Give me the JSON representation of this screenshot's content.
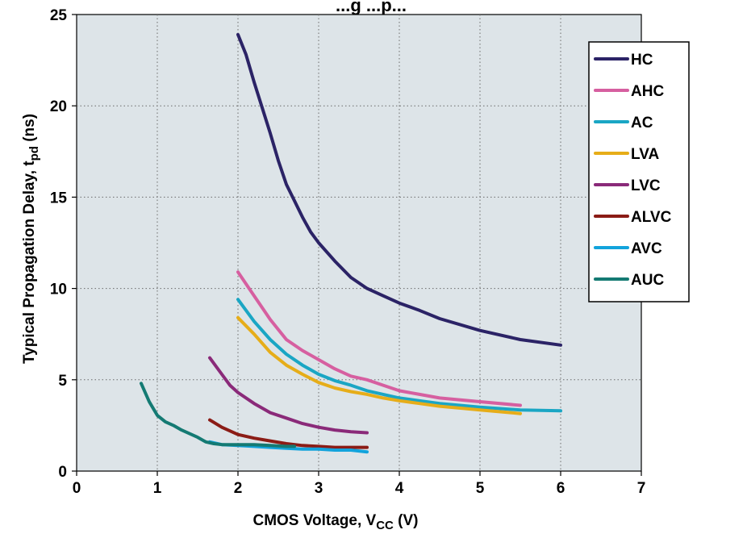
{
  "chart_data": {
    "type": "line",
    "title": "...g ...p...",
    "xlabel": {
      "main": "CMOS Voltage, V",
      "sub": "CC",
      "suffix": " (V)"
    },
    "ylabel": {
      "main": "Typical Propagation Delay, t",
      "sub": "pd",
      "suffix": " (ns)"
    },
    "xlim": [
      0,
      7
    ],
    "ylim": [
      0,
      25
    ],
    "xticks": [
      0,
      1,
      2,
      3,
      4,
      5,
      6,
      7
    ],
    "yticks": [
      0,
      5,
      10,
      15,
      20,
      25
    ],
    "grid": true,
    "legend_position": "top-right",
    "plot_background": "#dde4e8",
    "series": [
      {
        "name": "HC",
        "color": "#2b2366",
        "x": [
          2.0,
          2.1,
          2.2,
          2.3,
          2.4,
          2.5,
          2.6,
          2.7,
          2.8,
          2.9,
          3.0,
          3.2,
          3.4,
          3.6,
          3.8,
          4.0,
          4.25,
          4.5,
          5.0,
          5.5,
          6.0
        ],
        "y": [
          23.9,
          22.8,
          21.3,
          19.9,
          18.5,
          17.0,
          15.7,
          14.8,
          13.9,
          13.1,
          12.5,
          11.5,
          10.6,
          10.0,
          9.6,
          9.2,
          8.8,
          8.35,
          7.7,
          7.2,
          6.9
        ]
      },
      {
        "name": "AHC",
        "color": "#d65fa0",
        "x": [
          2.0,
          2.2,
          2.4,
          2.6,
          2.8,
          3.0,
          3.2,
          3.4,
          3.6,
          3.8,
          4.0,
          4.25,
          4.5,
          5.0,
          5.5
        ],
        "y": [
          10.9,
          9.6,
          8.3,
          7.2,
          6.6,
          6.1,
          5.6,
          5.2,
          5.0,
          4.7,
          4.4,
          4.2,
          4.0,
          3.8,
          3.6
        ]
      },
      {
        "name": "AC",
        "color": "#1aa6c4",
        "x": [
          2.0,
          2.2,
          2.4,
          2.6,
          2.8,
          3.0,
          3.2,
          3.4,
          3.6,
          3.8,
          4.0,
          4.25,
          4.5,
          5.0,
          5.5,
          6.0
        ],
        "y": [
          9.4,
          8.2,
          7.2,
          6.4,
          5.8,
          5.3,
          4.95,
          4.7,
          4.4,
          4.2,
          4.0,
          3.85,
          3.7,
          3.5,
          3.35,
          3.3
        ]
      },
      {
        "name": "LVA",
        "color": "#e6ad19",
        "x": [
          2.0,
          2.2,
          2.4,
          2.6,
          2.8,
          3.0,
          3.2,
          3.4,
          3.6,
          3.8,
          4.0,
          4.25,
          4.5,
          5.0,
          5.5
        ],
        "y": [
          8.4,
          7.5,
          6.5,
          5.8,
          5.3,
          4.85,
          4.55,
          4.35,
          4.2,
          4.0,
          3.85,
          3.7,
          3.55,
          3.35,
          3.15
        ]
      },
      {
        "name": "LVC",
        "color": "#8a2a79",
        "x": [
          1.65,
          1.8,
          1.9,
          2.0,
          2.2,
          2.4,
          2.6,
          2.8,
          3.0,
          3.2,
          3.4,
          3.6
        ],
        "y": [
          6.2,
          5.3,
          4.7,
          4.3,
          3.7,
          3.2,
          2.9,
          2.6,
          2.4,
          2.25,
          2.15,
          2.1
        ]
      },
      {
        "name": "ALVC",
        "color": "#8b1c16",
        "x": [
          1.65,
          1.8,
          2.0,
          2.2,
          2.4,
          2.6,
          2.8,
          3.0,
          3.2,
          3.4,
          3.6
        ],
        "y": [
          2.8,
          2.4,
          2.0,
          1.8,
          1.65,
          1.5,
          1.4,
          1.35,
          1.3,
          1.3,
          1.3
        ]
      },
      {
        "name": "AVC",
        "color": "#12a3dc",
        "x": [
          1.65,
          1.8,
          2.0,
          2.2,
          2.4,
          2.6,
          2.8,
          3.0,
          3.2,
          3.4,
          3.5,
          3.6
        ],
        "y": [
          1.6,
          1.45,
          1.4,
          1.35,
          1.3,
          1.25,
          1.2,
          1.2,
          1.15,
          1.15,
          1.1,
          1.05
        ]
      },
      {
        "name": "AUC",
        "color": "#147a73",
        "x": [
          0.8,
          0.9,
          1.0,
          1.1,
          1.2,
          1.3,
          1.4,
          1.5,
          1.6,
          1.7,
          1.8,
          1.9,
          2.0,
          2.2,
          2.4,
          2.6,
          2.7
        ],
        "y": [
          4.8,
          3.8,
          3.05,
          2.7,
          2.5,
          2.25,
          2.05,
          1.85,
          1.6,
          1.5,
          1.45,
          1.45,
          1.45,
          1.45,
          1.4,
          1.35,
          1.35
        ]
      }
    ]
  }
}
